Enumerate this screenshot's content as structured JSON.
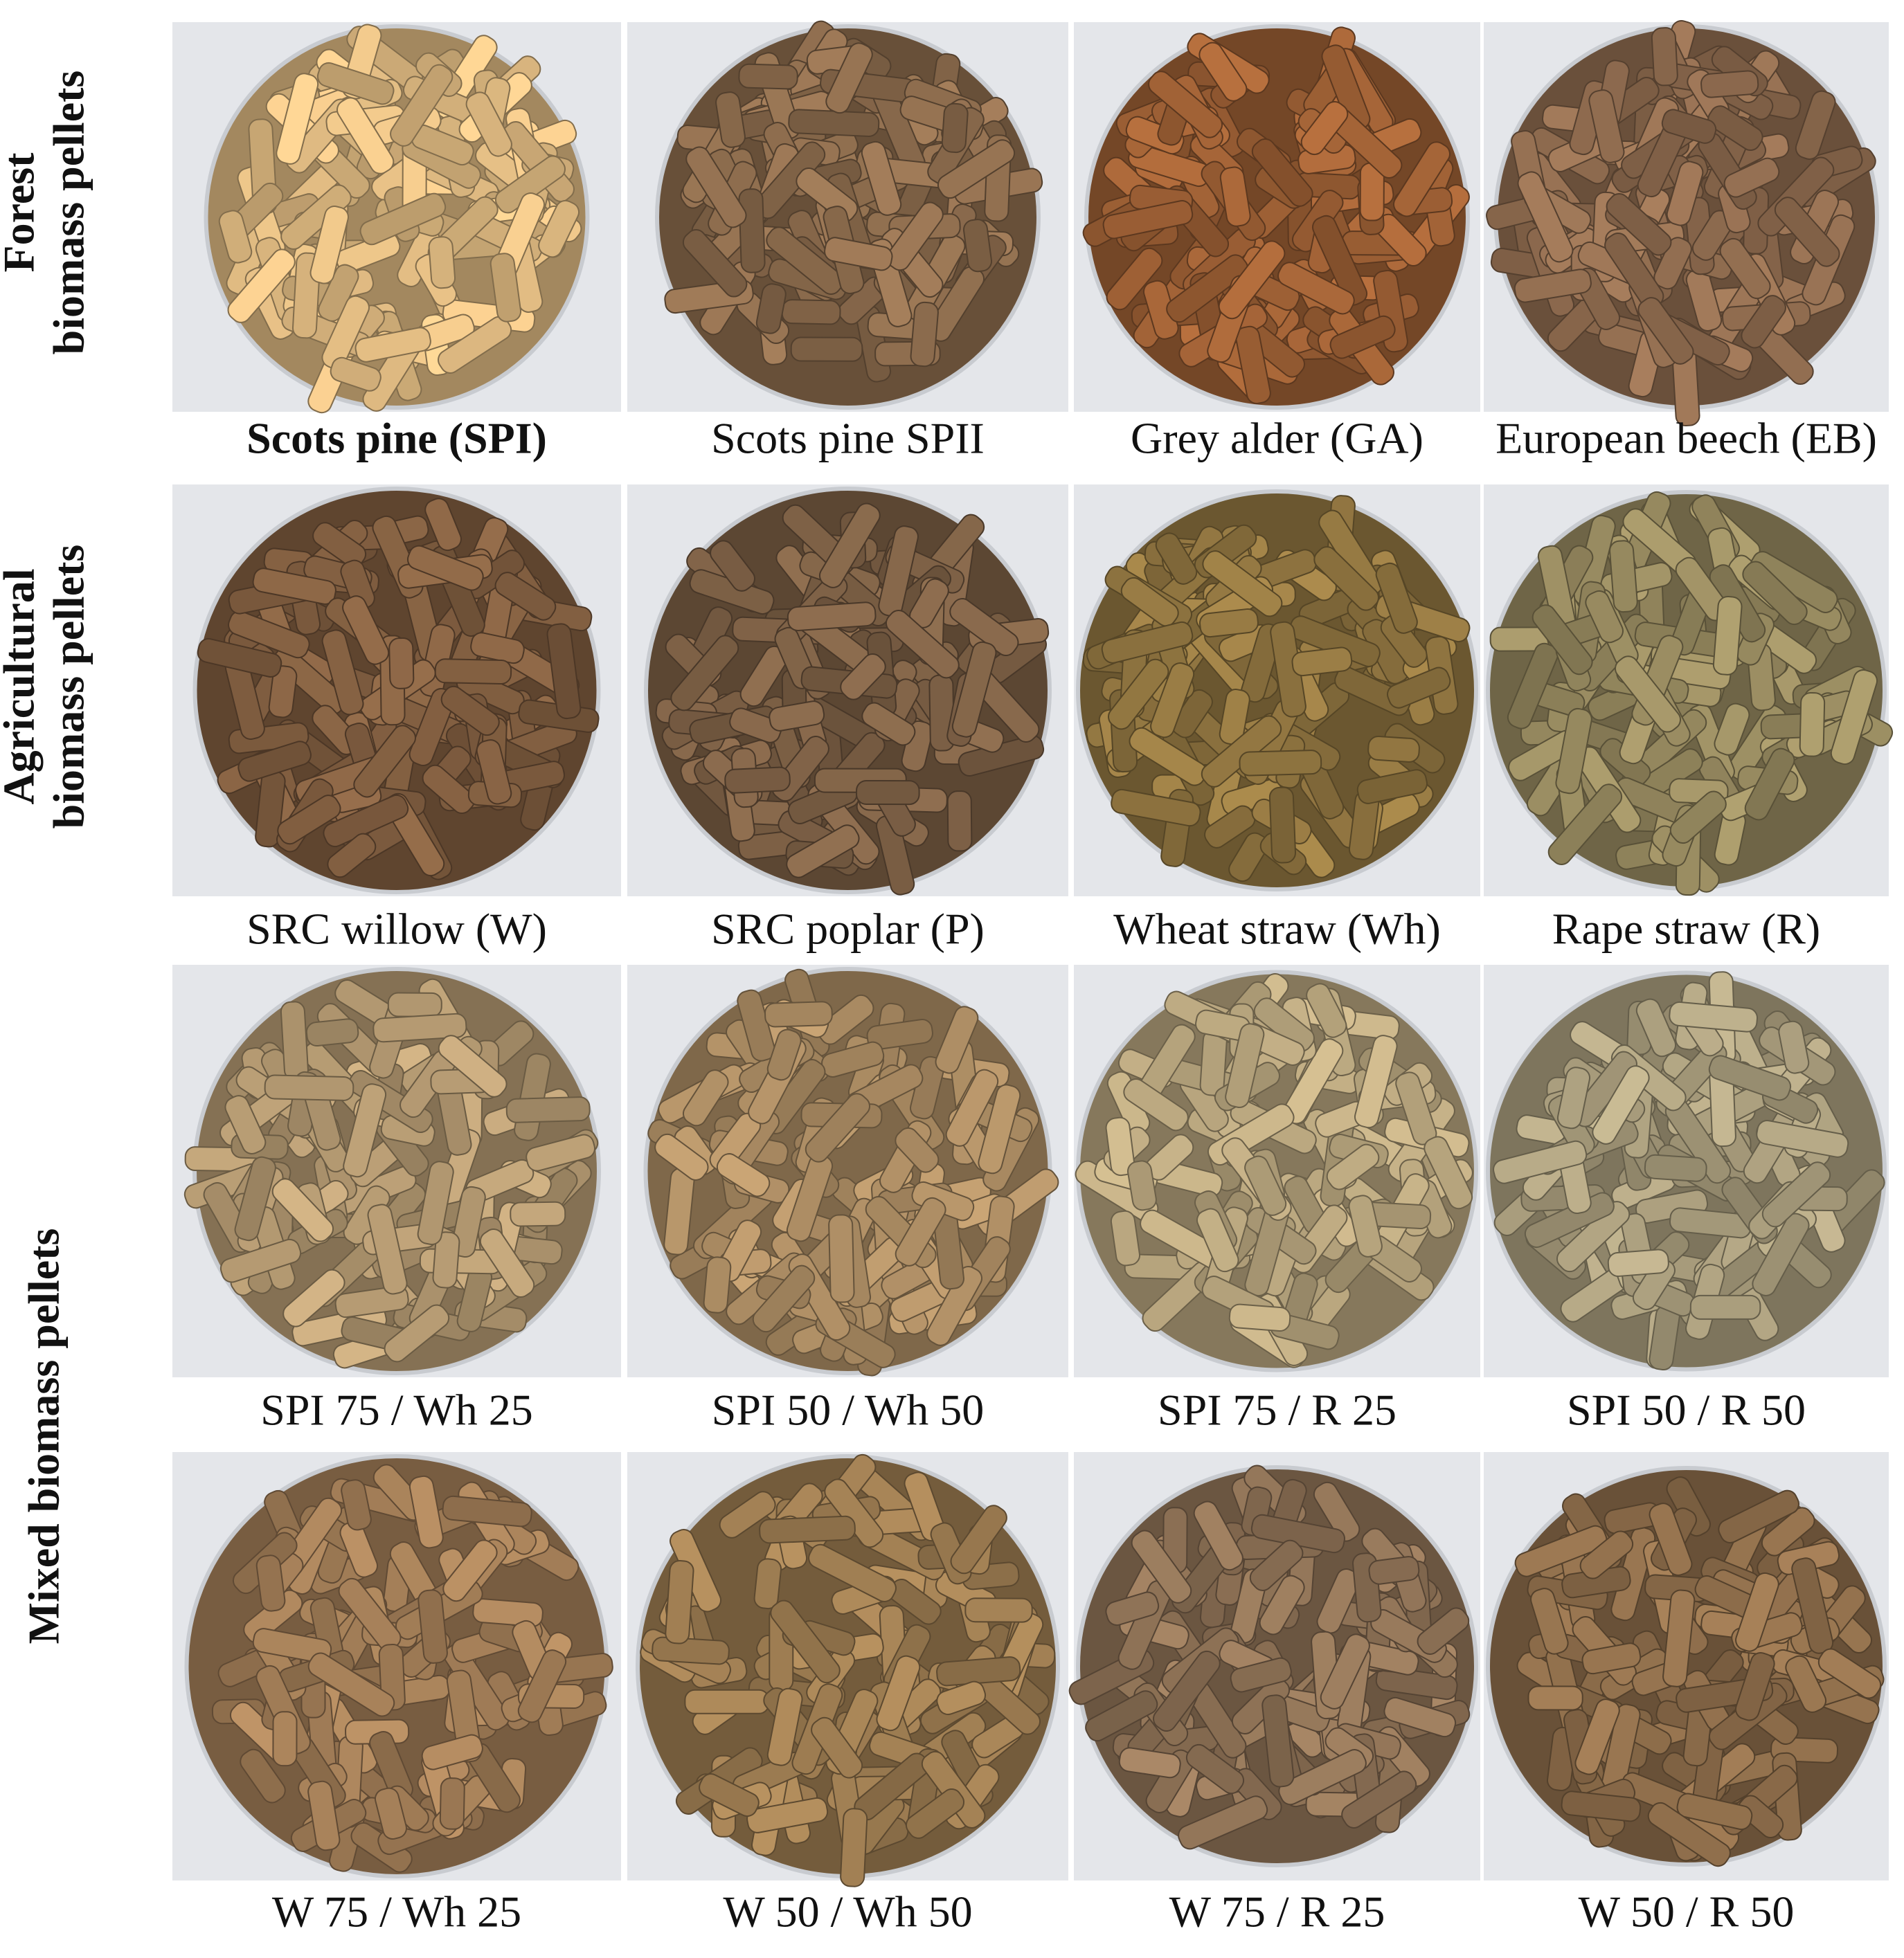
{
  "row_labels": [
    {
      "lines": [
        "Forest",
        "biomass pellets"
      ]
    },
    {
      "lines": [
        "Agricultural",
        "biomass pellets"
      ]
    },
    {
      "lines": [
        "Mixed biomass pellets"
      ]
    }
  ],
  "panels": [
    {
      "caption": "Scots pine (SPI)"
    },
    {
      "caption": "Scots pine SPII"
    },
    {
      "caption": "Grey alder (GA)"
    },
    {
      "caption": "European beech (EB)"
    },
    {
      "caption": "SRC willow (W)"
    },
    {
      "caption": "SRC poplar (P)"
    },
    {
      "caption": "Wheat straw (Wh)"
    },
    {
      "caption": "Rape straw (R)"
    },
    {
      "caption": "SPI 75 / Wh 25"
    },
    {
      "caption": "SPI 50 / Wh 50"
    },
    {
      "caption": "SPI 75 / R 25"
    },
    {
      "caption": "SPI 50 / R 50"
    },
    {
      "caption": "W 75 / Wh 25"
    },
    {
      "caption": "W 50 / Wh 50"
    },
    {
      "caption": "W 75 / R 25"
    },
    {
      "caption": "W 50 / R 50"
    }
  ]
}
